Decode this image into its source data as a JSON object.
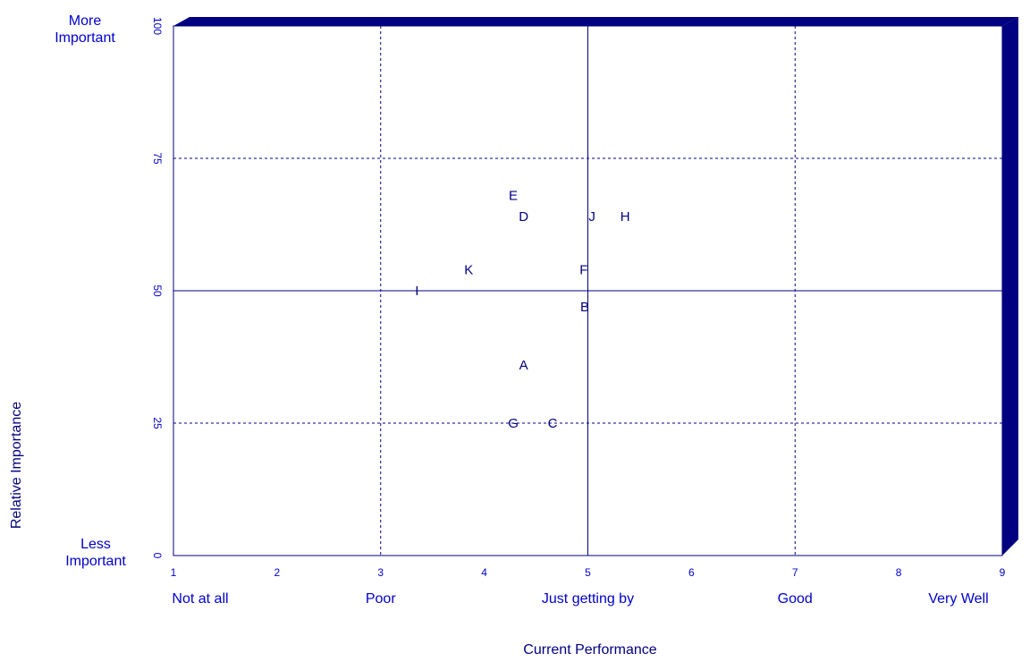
{
  "chart_data": {
    "type": "scatter",
    "xlabel": "Current Performance",
    "ylabel": "Relative Importance",
    "xlim": [
      1,
      9
    ],
    "ylim": [
      0,
      100
    ],
    "x_ticks": [
      1,
      2,
      3,
      4,
      5,
      6,
      7,
      8,
      9
    ],
    "y_ticks": [
      0,
      25,
      50,
      75,
      100
    ],
    "x_category_labels": [
      {
        "x": 1,
        "text": "Not at all"
      },
      {
        "x": 3,
        "text": "Poor"
      },
      {
        "x": 5,
        "text": "Just getting by"
      },
      {
        "x": 7,
        "text": "Good"
      },
      {
        "x": 9,
        "text": "Very Well"
      }
    ],
    "y_category_labels": {
      "top": [
        "More",
        "Important"
      ],
      "bottom": [
        "Less",
        "Important"
      ]
    },
    "reference_lines": {
      "x": 5,
      "y": 50
    },
    "dashed_grid": {
      "x": [
        3,
        7
      ],
      "y": [
        25,
        75
      ]
    },
    "points": [
      {
        "label": "A",
        "x": 4.38,
        "y": 36
      },
      {
        "label": "B",
        "x": 4.97,
        "y": 47
      },
      {
        "label": "C",
        "x": 4.66,
        "y": 25
      },
      {
        "label": "D",
        "x": 4.38,
        "y": 64
      },
      {
        "label": "E",
        "x": 4.28,
        "y": 68
      },
      {
        "label": "F",
        "x": 4.96,
        "y": 54
      },
      {
        "label": "G",
        "x": 4.28,
        "y": 25
      },
      {
        "label": "H",
        "x": 5.36,
        "y": 64
      },
      {
        "label": "I",
        "x": 3.35,
        "y": 50
      },
      {
        "label": "J",
        "x": 5.04,
        "y": 64
      },
      {
        "label": "K",
        "x": 3.85,
        "y": 54
      }
    ],
    "colors": {
      "frame": "#000080",
      "text": "#0000cc",
      "points": "#000080",
      "shadow": "#000080"
    }
  }
}
